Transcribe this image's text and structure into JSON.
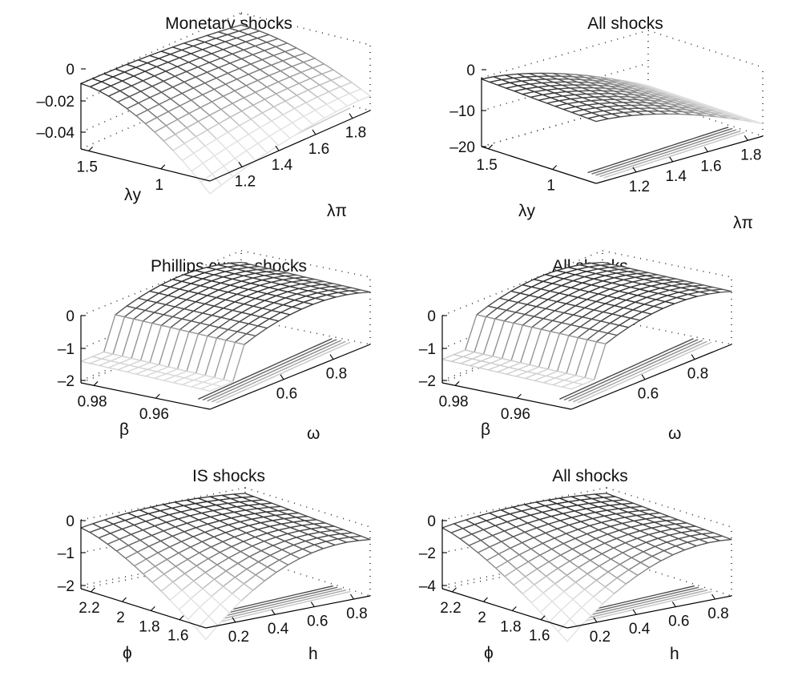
{
  "chart_data": [
    {
      "type": "surface",
      "title": "Monetary shocks",
      "x_axis": {
        "label": "λπ",
        "ticks": [
          "1.2",
          "1.4",
          "1.6",
          "1.8"
        ],
        "range": [
          1.1,
          1.9
        ]
      },
      "y_axis": {
        "label": "λy",
        "ticks": [
          "1.5",
          "1"
        ],
        "range": [
          0.6,
          1.6
        ]
      },
      "z_axis": {
        "label": "",
        "ticks": [
          "0",
          "–0.02",
          "–0.04"
        ],
        "range": [
          -0.05,
          0.0
        ]
      },
      "z_min": -0.05,
      "z_max": 0.0,
      "grid": "dotted box",
      "shape": "ridge along λy, falling to a minimum at the near corner",
      "contours_on_floor": true
    },
    {
      "type": "surface",
      "title": "All shocks",
      "x_axis": {
        "label": "λπ",
        "ticks": [
          "1.2",
          "1.4",
          "1.6",
          "1.8"
        ],
        "range": [
          1.1,
          1.9
        ]
      },
      "y_axis": {
        "label": "λy",
        "ticks": [
          "1.5",
          "1"
        ],
        "range": [
          0.6,
          1.6
        ]
      },
      "z_axis": {
        "label": "",
        "ticks": [
          "0",
          "–10",
          "–20"
        ],
        "range": [
          -20,
          2
        ]
      },
      "z_min": -20,
      "z_max": 2,
      "grid": "dotted box",
      "shape": "maximum near low λπ, falling steeply toward high λπ",
      "contours_on_floor": true
    },
    {
      "type": "surface",
      "title": "Phillips curve shocks",
      "x_axis": {
        "label": "ω",
        "ticks": [
          "0.6",
          "0.8"
        ],
        "range": [
          0.45,
          0.9
        ]
      },
      "y_axis": {
        "label": "β",
        "ticks": [
          "0.98",
          "0.96"
        ],
        "range": [
          0.95,
          0.99
        ]
      },
      "z_axis": {
        "label": "",
        "ticks": [
          "0",
          "–1",
          "–2"
        ],
        "range": [
          -2,
          0
        ]
      },
      "z_min": -2,
      "z_max": 0,
      "grid": "dotted box",
      "shape": "dome in ω, falling off sharply at low ω",
      "contours_on_floor": true
    },
    {
      "type": "surface",
      "title": "All shocks",
      "x_axis": {
        "label": "ω",
        "ticks": [
          "0.6",
          "0.8"
        ],
        "range": [
          0.45,
          0.9
        ]
      },
      "y_axis": {
        "label": "β",
        "ticks": [
          "0.98",
          "0.96"
        ],
        "range": [
          0.95,
          0.99
        ]
      },
      "z_axis": {
        "label": "",
        "ticks": [
          "0",
          "–1",
          "–2"
        ],
        "range": [
          -2,
          0
        ]
      },
      "z_min": -2,
      "z_max": 0,
      "grid": "dotted box",
      "shape": "dome in ω, falling off sharply at low ω",
      "contours_on_floor": true
    },
    {
      "type": "surface",
      "title": "IS shocks",
      "x_axis": {
        "label": "h",
        "ticks": [
          "0.2",
          "0.4",
          "0.6",
          "0.8"
        ],
        "range": [
          0.1,
          0.9
        ]
      },
      "y_axis": {
        "label": "ϕ",
        "ticks": [
          "2.2",
          "2",
          "1.8",
          "1.6"
        ],
        "range": [
          1.5,
          2.3
        ]
      },
      "z_axis": {
        "label": "",
        "ticks": [
          "0",
          "–1",
          "–2"
        ],
        "range": [
          -2,
          0
        ]
      },
      "z_min": -2,
      "z_max": 0,
      "grid": "dotted box",
      "shape": "smooth dome, minimum at the near corner",
      "contours_on_floor": true
    },
    {
      "type": "surface",
      "title": "All shocks",
      "x_axis": {
        "label": "h",
        "ticks": [
          "0.2",
          "0.4",
          "0.6",
          "0.8"
        ],
        "range": [
          0.1,
          0.9
        ]
      },
      "y_axis": {
        "label": "ϕ",
        "ticks": [
          "2.2",
          "2",
          "1.8",
          "1.6"
        ],
        "range": [
          1.5,
          2.3
        ]
      },
      "z_axis": {
        "label": "",
        "ticks": [
          "0",
          "–2",
          "–4"
        ],
        "range": [
          -4,
          0
        ]
      },
      "z_min": -4,
      "z_max": 0,
      "grid": "dotted box",
      "shape": "smooth dome, minimum at the near corner",
      "contours_on_floor": true
    }
  ],
  "colors": {
    "background": "#ffffff",
    "text": "#111111",
    "surface_light": "#e2e2e2",
    "surface_dark": "#2a2a2a"
  }
}
